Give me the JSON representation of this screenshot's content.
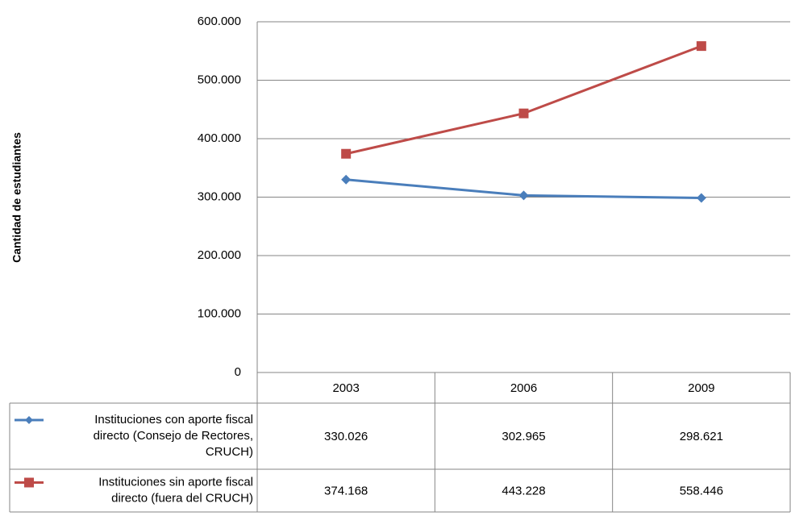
{
  "chart_data": {
    "type": "line",
    "categories": [
      "2003",
      "2006",
      "2009"
    ],
    "ylabel": "Cantidad de estudiantes",
    "ylim": [
      0,
      600000
    ],
    "yticks": [
      0,
      100000,
      200000,
      300000,
      400000,
      500000,
      600000
    ],
    "ytick_labels": [
      "0",
      "100.000",
      "200.000",
      "300.000",
      "400.000",
      "500.000",
      "600.000"
    ],
    "grid": true,
    "legend": "data-table",
    "series": [
      {
        "name_lines": [
          "Instituciones con aporte fiscal",
          "directo (Consejo de Rectores,",
          "CRUCH)"
        ],
        "values": [
          330026,
          302965,
          298621
        ],
        "labels": [
          "330.026",
          "302.965",
          "298.621"
        ],
        "color": "#4a7ebb",
        "marker": "diamond"
      },
      {
        "name_lines": [
          "Instituciones sin aporte fiscal",
          "directo (fuera del CRUCH)"
        ],
        "values": [
          374168,
          443228,
          558446
        ],
        "labels": [
          "374.168",
          "443.228",
          "558.446"
        ],
        "color": "#be4b48",
        "marker": "square"
      }
    ]
  }
}
